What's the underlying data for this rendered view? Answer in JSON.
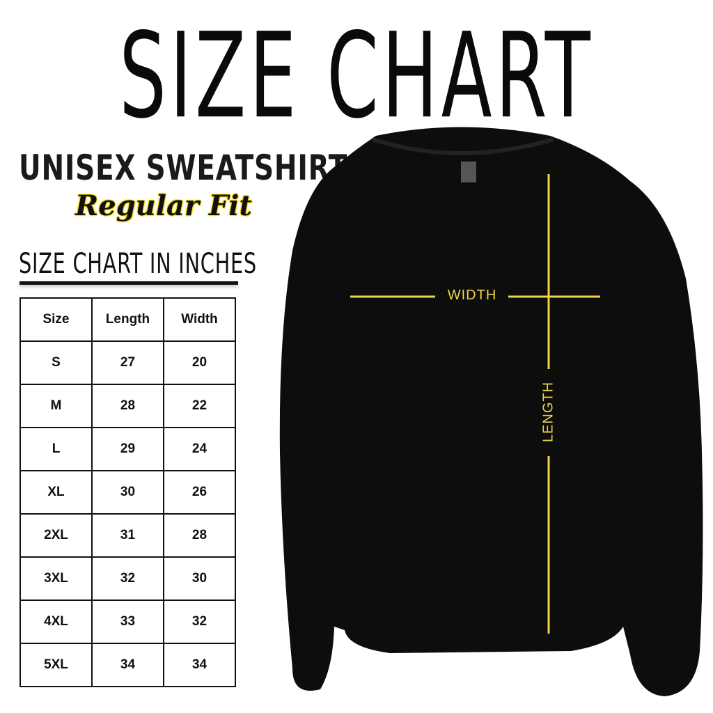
{
  "title": "SIZE CHART",
  "product": "UNISEX SWEATSHIRT",
  "fit": "Regular Fit",
  "table_title": "SIZE CHART IN INCHES",
  "colors": {
    "accent": "#f0d448",
    "shirt": "#0d0d0d",
    "text": "#111111"
  },
  "diagram": {
    "width_label": "WIDTH",
    "length_label": "LENGTH"
  },
  "table": {
    "headers": [
      "Size",
      "Length",
      "Width"
    ],
    "rows": [
      [
        "S",
        "27",
        "20"
      ],
      [
        "M",
        "28",
        "22"
      ],
      [
        "L",
        "29",
        "24"
      ],
      [
        "XL",
        "30",
        "26"
      ],
      [
        "2XL",
        "31",
        "28"
      ],
      [
        "3XL",
        "32",
        "30"
      ],
      [
        "4XL",
        "33",
        "32"
      ],
      [
        "5XL",
        "34",
        "34"
      ]
    ]
  }
}
